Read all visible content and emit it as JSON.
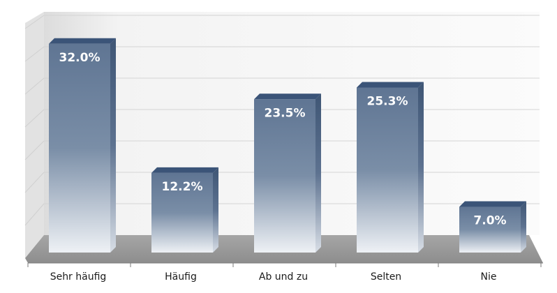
{
  "chart_data": {
    "type": "bar",
    "categories": [
      "Sehr häufig",
      "Häufig",
      "Ab und zu",
      "Selten",
      "Nie"
    ],
    "values": [
      32.0,
      12.2,
      23.5,
      25.3,
      7.0
    ],
    "value_labels": [
      "32.0%",
      "12.2%",
      "23.5%",
      "25.3%",
      "7.0%"
    ],
    "ylim": [
      0,
      35
    ],
    "grid": true,
    "legend": "none",
    "colors": {
      "bar_top": "#3e5a7e",
      "bar_body": "#6c819c",
      "bar_fade": "#e4e9ef",
      "wall": "#efefef",
      "floor": "#9a9a9a"
    }
  }
}
